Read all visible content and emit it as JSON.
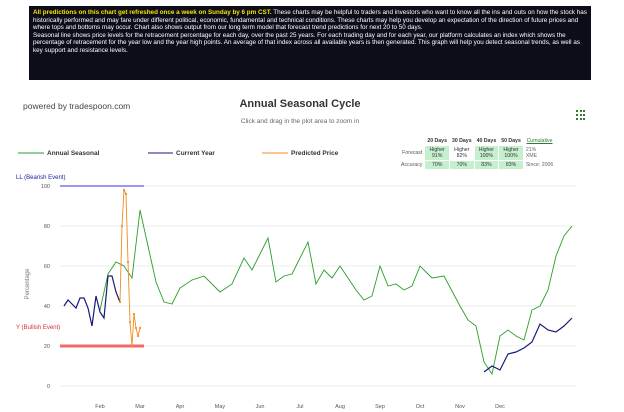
{
  "notice": {
    "highlight": "All predictions on this chart get refreshed once a week on Sunday by 6 pm CST.",
    "body": " These charts may be helpful to traders and investors who want to know all the ins and outs on how the stock has historically performed and may fare under different political, economic, fundamental and technical conditions. These charts may help you develop an expectation of the direction of future prices and where tops and bottoms may occur. Chart also shows output from our long term model that forecast trend predictions for next 20 to 50 days.",
    "line2": "Seasonal line shows price levels for the retracement percentage for each day, over the past 25 years. For each trading day and for each year, our platform calculates an index which shows the percentage of retracement for the year low and the year high points. An average of that index across all available years is then generated. This graph will help you detect seasonal trends, as well as key support and resistance levels."
  },
  "powered_by": "powered by tradespoon.com",
  "title": "Annual Seasonal Cycle",
  "subtitle": "Click and drag in the plot area to zoom in",
  "legend": {
    "annual": "Annual Seasonal",
    "current": "Current Year",
    "predicted": "Predicted Price"
  },
  "events": {
    "bearish": "LL (Bearish Event)",
    "bullish": "Y (Bullish Event)"
  },
  "forecast_table": {
    "headers": [
      "20 Days",
      "30 Days",
      "40 Days",
      "50 Days"
    ],
    "cumulative": "Cumulative",
    "forecast_label": "Forecast",
    "forecast": [
      "Higher\n91%",
      "Higher\n82%",
      "Higher\n100%",
      "Higher\n100%"
    ],
    "accuracy_label": "Accuracy",
    "accuracy": [
      "70%",
      "70%",
      "83%",
      "83%"
    ],
    "side": [
      "21%",
      "XME",
      "Since: 2006"
    ]
  },
  "colors": {
    "annual": "#2a9d2a",
    "current": "#1a1a7a",
    "predicted": "#f08c1e",
    "bearish_line": "#5a5ae6",
    "bullish_line": "#f06a6a",
    "bullish_text": "#d32f2f",
    "bearish_text": "#1a1a9a"
  },
  "chart_data": {
    "type": "line",
    "ylabel": "Percentage",
    "ylim": [
      -5,
      100
    ],
    "y_ticks": [
      0,
      20,
      40,
      60,
      80,
      100
    ],
    "x_ticks": [
      "Feb",
      "Mar",
      "Apr",
      "May",
      "Jun",
      "Jul",
      "Aug",
      "Sep",
      "Oct",
      "Nov",
      "Dec"
    ],
    "grid": true,
    "series": [
      {
        "name": "Annual Seasonal",
        "x": [
          0,
          0.2,
          0.4,
          0.6,
          0.8,
          1.0,
          1.2,
          1.4,
          1.6,
          1.8,
          2.0,
          2.3,
          2.6,
          3.0,
          3.3,
          3.6,
          3.8,
          4.0,
          4.2,
          4.4,
          4.6,
          4.8,
          5.0,
          5.2,
          5.4,
          5.6,
          5.8,
          6.0,
          6.2,
          6.4,
          6.6,
          6.8,
          7.0,
          7.2,
          7.4,
          7.6,
          7.8,
          8.0,
          8.3,
          8.6,
          9.0,
          9.2,
          9.4,
          9.6,
          9.8,
          10.0,
          10.2,
          10.4,
          10.6,
          10.8,
          11.0,
          11.2,
          11.4,
          11.6,
          11.8
        ],
        "y": [
          38,
          56,
          62,
          60,
          54,
          88,
          70,
          52,
          42,
          41,
          49,
          53,
          55,
          47,
          51,
          64,
          58,
          66,
          74,
          52,
          55,
          56,
          64,
          72,
          51,
          58,
          54,
          60,
          54,
          48,
          43,
          45,
          60,
          50,
          51,
          48,
          50,
          60,
          54,
          55,
          40,
          33,
          30,
          12,
          6,
          25,
          28,
          25,
          23,
          38,
          40,
          48,
          65,
          75,
          80
        ]
      },
      {
        "name": "Current Year",
        "x": [
          -0.9,
          -0.8,
          -0.7,
          -0.6,
          -0.5,
          -0.4,
          -0.3,
          -0.2,
          -0.1,
          0.0,
          0.1,
          0.2,
          0.3,
          0.4,
          0.5,
          9.6,
          9.8,
          10.0,
          10.2,
          10.4,
          10.6,
          10.8,
          11.0,
          11.2,
          11.4,
          11.6,
          11.8
        ],
        "y": [
          40,
          43,
          41,
          39,
          44,
          44,
          39,
          30,
          45,
          37,
          34,
          55,
          55,
          47,
          42,
          7,
          10,
          8,
          16,
          17,
          19,
          22,
          31,
          28,
          27,
          30,
          34
        ]
      },
      {
        "name": "Predicted Price",
        "x": [
          0.5,
          0.55,
          0.6,
          0.65,
          0.7,
          0.75,
          0.8,
          0.85,
          0.9,
          0.95,
          1.0
        ],
        "y": [
          42,
          80,
          98,
          96,
          62,
          32,
          20,
          36,
          29,
          25,
          29
        ]
      }
    ],
    "reference_lines": [
      {
        "label": "LL (Bearish Event)",
        "y": 100
      },
      {
        "label": "Y (Bullish Event)",
        "y": 20
      }
    ]
  }
}
